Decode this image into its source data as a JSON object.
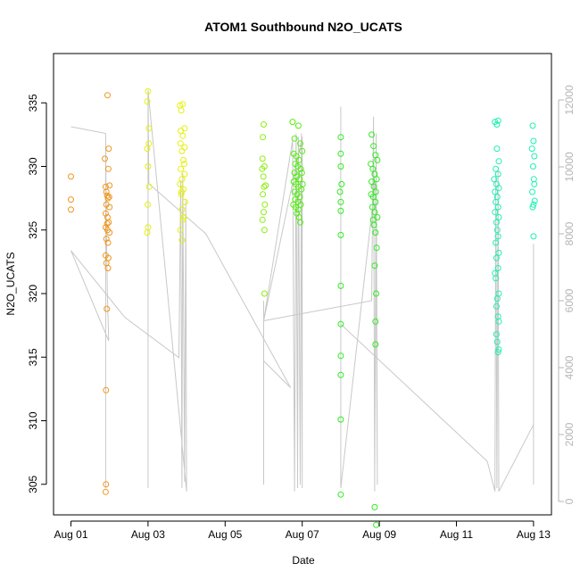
{
  "chart_data": {
    "type": "scatter",
    "title": "ATOM1 Southbound N2O_UCATS",
    "xlabel": "Date",
    "ylabel": "N2O_UCATS",
    "x_ticks": [
      "Aug 01",
      "Aug 03",
      "Aug 05",
      "Aug 07",
      "Aug 09",
      "Aug 11",
      "Aug 13"
    ],
    "y_ticks": [
      305,
      310,
      315,
      320,
      325,
      330,
      335
    ],
    "y2_ticks": [
      0,
      2000,
      4000,
      6000,
      8000,
      10000,
      12000
    ],
    "ylim": [
      301.5,
      337.5
    ],
    "y2lim": [
      -400,
      12900
    ],
    "xlim_days": [
      0.8,
      13.5
    ],
    "grid": false,
    "colors": {
      "axis": "#000000",
      "altitude_line": "#c8c8c8",
      "right_axis": "#b5b5b5"
    },
    "series": [
      {
        "color": "#f0961e",
        "points": [
          [
            0.0,
            329.2
          ],
          [
            0.0,
            327.4
          ],
          [
            0.0,
            326.6
          ],
          [
            0.88,
            330.6
          ],
          [
            0.9,
            328.4
          ],
          [
            0.92,
            328.0
          ],
          [
            0.94,
            327.7
          ],
          [
            0.96,
            327.5
          ],
          [
            0.92,
            327.0
          ],
          [
            0.9,
            326.3
          ],
          [
            0.95,
            326.0
          ],
          [
            0.98,
            325.6
          ],
          [
            0.9,
            325.2
          ],
          [
            0.95,
            325.0
          ],
          [
            1.0,
            324.8
          ],
          [
            0.92,
            324.3
          ],
          [
            0.96,
            324.0
          ],
          [
            0.9,
            323.0
          ],
          [
            0.97,
            322.8
          ],
          [
            0.92,
            322.4
          ],
          [
            0.96,
            322.0
          ],
          [
            0.93,
            318.8
          ],
          [
            0.91,
            312.4
          ],
          [
            0.91,
            305.0
          ],
          [
            0.9,
            304.4
          ],
          [
            0.98,
            331.4
          ],
          [
            0.97,
            329.8
          ],
          [
            1.0,
            328.5
          ],
          [
            0.99,
            327.6
          ],
          [
            0.95,
            335.6
          ],
          [
            1.0,
            326.8
          ],
          [
            0.94,
            325.5
          ]
        ]
      },
      {
        "color": "#e6f00a",
        "points": [
          [
            2.0,
            335.9
          ],
          [
            1.98,
            335.1
          ],
          [
            2.02,
            333.0
          ],
          [
            1.98,
            331.4
          ],
          [
            2.0,
            330.0
          ],
          [
            2.03,
            328.4
          ],
          [
            1.99,
            327.0
          ],
          [
            2.0,
            325.2
          ],
          [
            1.98,
            324.8
          ],
          [
            2.02,
            331.8
          ],
          [
            2.83,
            334.8
          ],
          [
            2.9,
            334.9
          ],
          [
            2.86,
            334.4
          ],
          [
            2.95,
            333.0
          ],
          [
            2.85,
            332.8
          ],
          [
            2.9,
            332.4
          ],
          [
            2.84,
            331.8
          ],
          [
            2.95,
            331.5
          ],
          [
            2.88,
            331.2
          ],
          [
            2.92,
            330.5
          ],
          [
            2.85,
            329.8
          ],
          [
            2.95,
            329.4
          ],
          [
            2.88,
            329.0
          ],
          [
            2.83,
            328.6
          ],
          [
            2.92,
            328.2
          ],
          [
            2.86,
            327.8
          ],
          [
            2.96,
            327.2
          ],
          [
            2.88,
            326.6
          ],
          [
            2.9,
            325.8
          ],
          [
            2.84,
            325.0
          ],
          [
            2.88,
            324.2
          ],
          [
            2.94,
            330.2
          ],
          [
            2.87,
            328.0
          ],
          [
            2.93,
            326.0
          ]
        ]
      },
      {
        "color": "#8cee0f",
        "points": [
          [
            5.0,
            333.3
          ],
          [
            4.98,
            332.3
          ],
          [
            4.97,
            330.6
          ],
          [
            5.02,
            330.0
          ],
          [
            4.99,
            329.2
          ],
          [
            5.01,
            328.4
          ],
          [
            4.98,
            327.8
          ],
          [
            5.03,
            327.0
          ],
          [
            5.0,
            326.4
          ],
          [
            4.97,
            325.8
          ],
          [
            5.02,
            325.0
          ],
          [
            5.02,
            320.0
          ],
          [
            5.05,
            328.5
          ],
          [
            4.96,
            329.8
          ]
        ]
      },
      {
        "color": "#54ec12",
        "points": [
          [
            5.75,
            333.5
          ],
          [
            5.9,
            333.2
          ],
          [
            5.8,
            332.2
          ],
          [
            5.95,
            331.8
          ],
          [
            5.78,
            331.0
          ],
          [
            5.85,
            330.8
          ],
          [
            5.92,
            330.5
          ],
          [
            6.0,
            331.2
          ],
          [
            5.82,
            330.2
          ],
          [
            5.88,
            330.0
          ],
          [
            5.96,
            329.8
          ],
          [
            5.8,
            329.5
          ],
          [
            5.86,
            329.2
          ],
          [
            5.93,
            329.0
          ],
          [
            5.78,
            328.8
          ],
          [
            5.84,
            328.6
          ],
          [
            5.9,
            328.4
          ],
          [
            5.98,
            328.2
          ],
          [
            5.8,
            328.0
          ],
          [
            5.87,
            327.8
          ],
          [
            5.94,
            327.6
          ],
          [
            5.82,
            327.4
          ],
          [
            5.89,
            327.2
          ],
          [
            5.96,
            327.0
          ],
          [
            5.83,
            326.8
          ],
          [
            5.9,
            326.6
          ],
          [
            5.86,
            326.3
          ],
          [
            5.92,
            326.0
          ],
          [
            5.95,
            325.6
          ],
          [
            5.99,
            329.5
          ],
          [
            5.77,
            327.0
          ],
          [
            6.01,
            328.6
          ]
        ]
      },
      {
        "color": "#30ec20",
        "points": [
          [
            7.0,
            332.3
          ],
          [
            7.0,
            331.0
          ],
          [
            7.0,
            330.0
          ],
          [
            7.02,
            328.6
          ],
          [
            6.98,
            328.0
          ],
          [
            7.0,
            327.2
          ],
          [
            7.0,
            326.5
          ],
          [
            7.0,
            324.6
          ],
          [
            7.0,
            320.6
          ],
          [
            7.0,
            317.6
          ],
          [
            7.0,
            315.1
          ],
          [
            7.0,
            313.6
          ],
          [
            7.0,
            310.1
          ],
          [
            7.0,
            304.2
          ],
          [
            7.8,
            332.5
          ],
          [
            7.85,
            331.6
          ],
          [
            7.9,
            330.9
          ],
          [
            7.78,
            330.2
          ],
          [
            7.83,
            329.8
          ],
          [
            7.88,
            329.4
          ],
          [
            7.93,
            329.0
          ],
          [
            7.8,
            328.8
          ],
          [
            7.86,
            328.4
          ],
          [
            7.91,
            328.0
          ],
          [
            7.84,
            327.6
          ],
          [
            7.9,
            327.2
          ],
          [
            7.82,
            326.8
          ],
          [
            7.88,
            326.4
          ],
          [
            7.95,
            326.0
          ],
          [
            7.86,
            325.4
          ],
          [
            7.9,
            324.8
          ],
          [
            7.93,
            323.6
          ],
          [
            7.88,
            322.2
          ],
          [
            7.92,
            320.0
          ],
          [
            7.9,
            317.8
          ],
          [
            7.9,
            316.0
          ],
          [
            7.88,
            303.2
          ],
          [
            7.92,
            301.8
          ],
          [
            7.84,
            325.8
          ],
          [
            7.95,
            330.5
          ],
          [
            7.79,
            327.8
          ]
        ]
      },
      {
        "color": "#1ef0b4",
        "points": [
          [
            11.0,
            333.5
          ],
          [
            11.05,
            333.3
          ],
          [
            11.08,
            333.6
          ],
          [
            11.05,
            331.4
          ],
          [
            11.1,
            330.4
          ],
          [
            11.02,
            329.8
          ],
          [
            11.08,
            329.4
          ],
          [
            10.98,
            329.0
          ],
          [
            11.04,
            328.6
          ],
          [
            11.1,
            328.3
          ],
          [
            11.0,
            328.0
          ],
          [
            11.06,
            327.6
          ],
          [
            11.02,
            327.2
          ],
          [
            11.08,
            326.8
          ],
          [
            11.0,
            326.4
          ],
          [
            11.1,
            326.0
          ],
          [
            11.04,
            325.6
          ],
          [
            11.06,
            325.0
          ],
          [
            11.08,
            324.5
          ],
          [
            11.02,
            324.0
          ],
          [
            11.1,
            323.2
          ],
          [
            11.04,
            322.8
          ],
          [
            11.08,
            322.0
          ],
          [
            11.02,
            321.2
          ],
          [
            11.1,
            320.0
          ],
          [
            11.06,
            319.6
          ],
          [
            11.08,
            318.2
          ],
          [
            11.1,
            317.8
          ],
          [
            11.04,
            316.8
          ],
          [
            11.06,
            316.2
          ],
          [
            11.1,
            315.6
          ],
          [
            11.08,
            315.4
          ],
          [
            11.0,
            321.6
          ],
          [
            11.04,
            319.0
          ],
          [
            11.98,
            333.2
          ],
          [
            12.0,
            332.0
          ],
          [
            11.96,
            331.4
          ],
          [
            12.02,
            330.8
          ],
          [
            11.99,
            330.0
          ],
          [
            12.01,
            329.0
          ],
          [
            11.97,
            328.0
          ],
          [
            12.03,
            327.3
          ],
          [
            12.0,
            327.0
          ],
          [
            11.98,
            326.8
          ],
          [
            12.0,
            324.5
          ],
          [
            12.02,
            328.6
          ]
        ]
      }
    ],
    "altitude_track": {
      "color": "#c8c8c8",
      "path": [
        [
          0.0,
          11200
        ],
        [
          0.9,
          11000
        ],
        [
          0.9,
          400
        ],
        [
          0.9,
          11000
        ],
        [
          0.92,
          8000
        ],
        [
          0.95,
          6000
        ],
        [
          0.98,
          4800
        ],
        [
          0.0,
          7500
        ],
        [
          1.4,
          5500
        ],
        [
          2.8,
          4300
        ],
        [
          2.85,
          9600
        ],
        [
          2.88,
          400
        ],
        [
          2.9,
          9800
        ],
        [
          2.95,
          600
        ],
        [
          2.98,
          9000
        ],
        [
          3.0,
          300
        ],
        [
          2.0,
          12300
        ],
        [
          2.0,
          400
        ],
        [
          2.0,
          12300
        ],
        [
          2.02,
          9500
        ],
        [
          3.5,
          8000
        ],
        [
          5.7,
          3400
        ],
        [
          5.0,
          4200
        ],
        [
          5.0,
          6000
        ],
        [
          5.0,
          500
        ],
        [
          5.0,
          5400
        ],
        [
          5.75,
          10800
        ],
        [
          5.8,
          300
        ],
        [
          5.84,
          11000
        ],
        [
          5.88,
          400
        ],
        [
          5.9,
          10900
        ],
        [
          5.95,
          500
        ],
        [
          5.98,
          11000
        ],
        [
          6.0,
          400
        ],
        [
          6.0,
          10900
        ],
        [
          5.0,
          5400
        ],
        [
          7.8,
          6000
        ],
        [
          7.85,
          11500
        ],
        [
          7.88,
          300
        ],
        [
          7.92,
          11000
        ],
        [
          7.95,
          500
        ],
        [
          7.9,
          9600
        ],
        [
          7.0,
          400
        ],
        [
          7.0,
          11800
        ],
        [
          7.0,
          400
        ],
        [
          7.0,
          5300
        ],
        [
          10.8,
          1200
        ],
        [
          11.0,
          300
        ],
        [
          11.02,
          9800
        ],
        [
          11.05,
          400
        ],
        [
          11.08,
          10000
        ],
        [
          11.1,
          300
        ],
        [
          12.0,
          2300
        ],
        [
          12.0,
          7700
        ],
        [
          12.0,
          500
        ]
      ]
    }
  }
}
